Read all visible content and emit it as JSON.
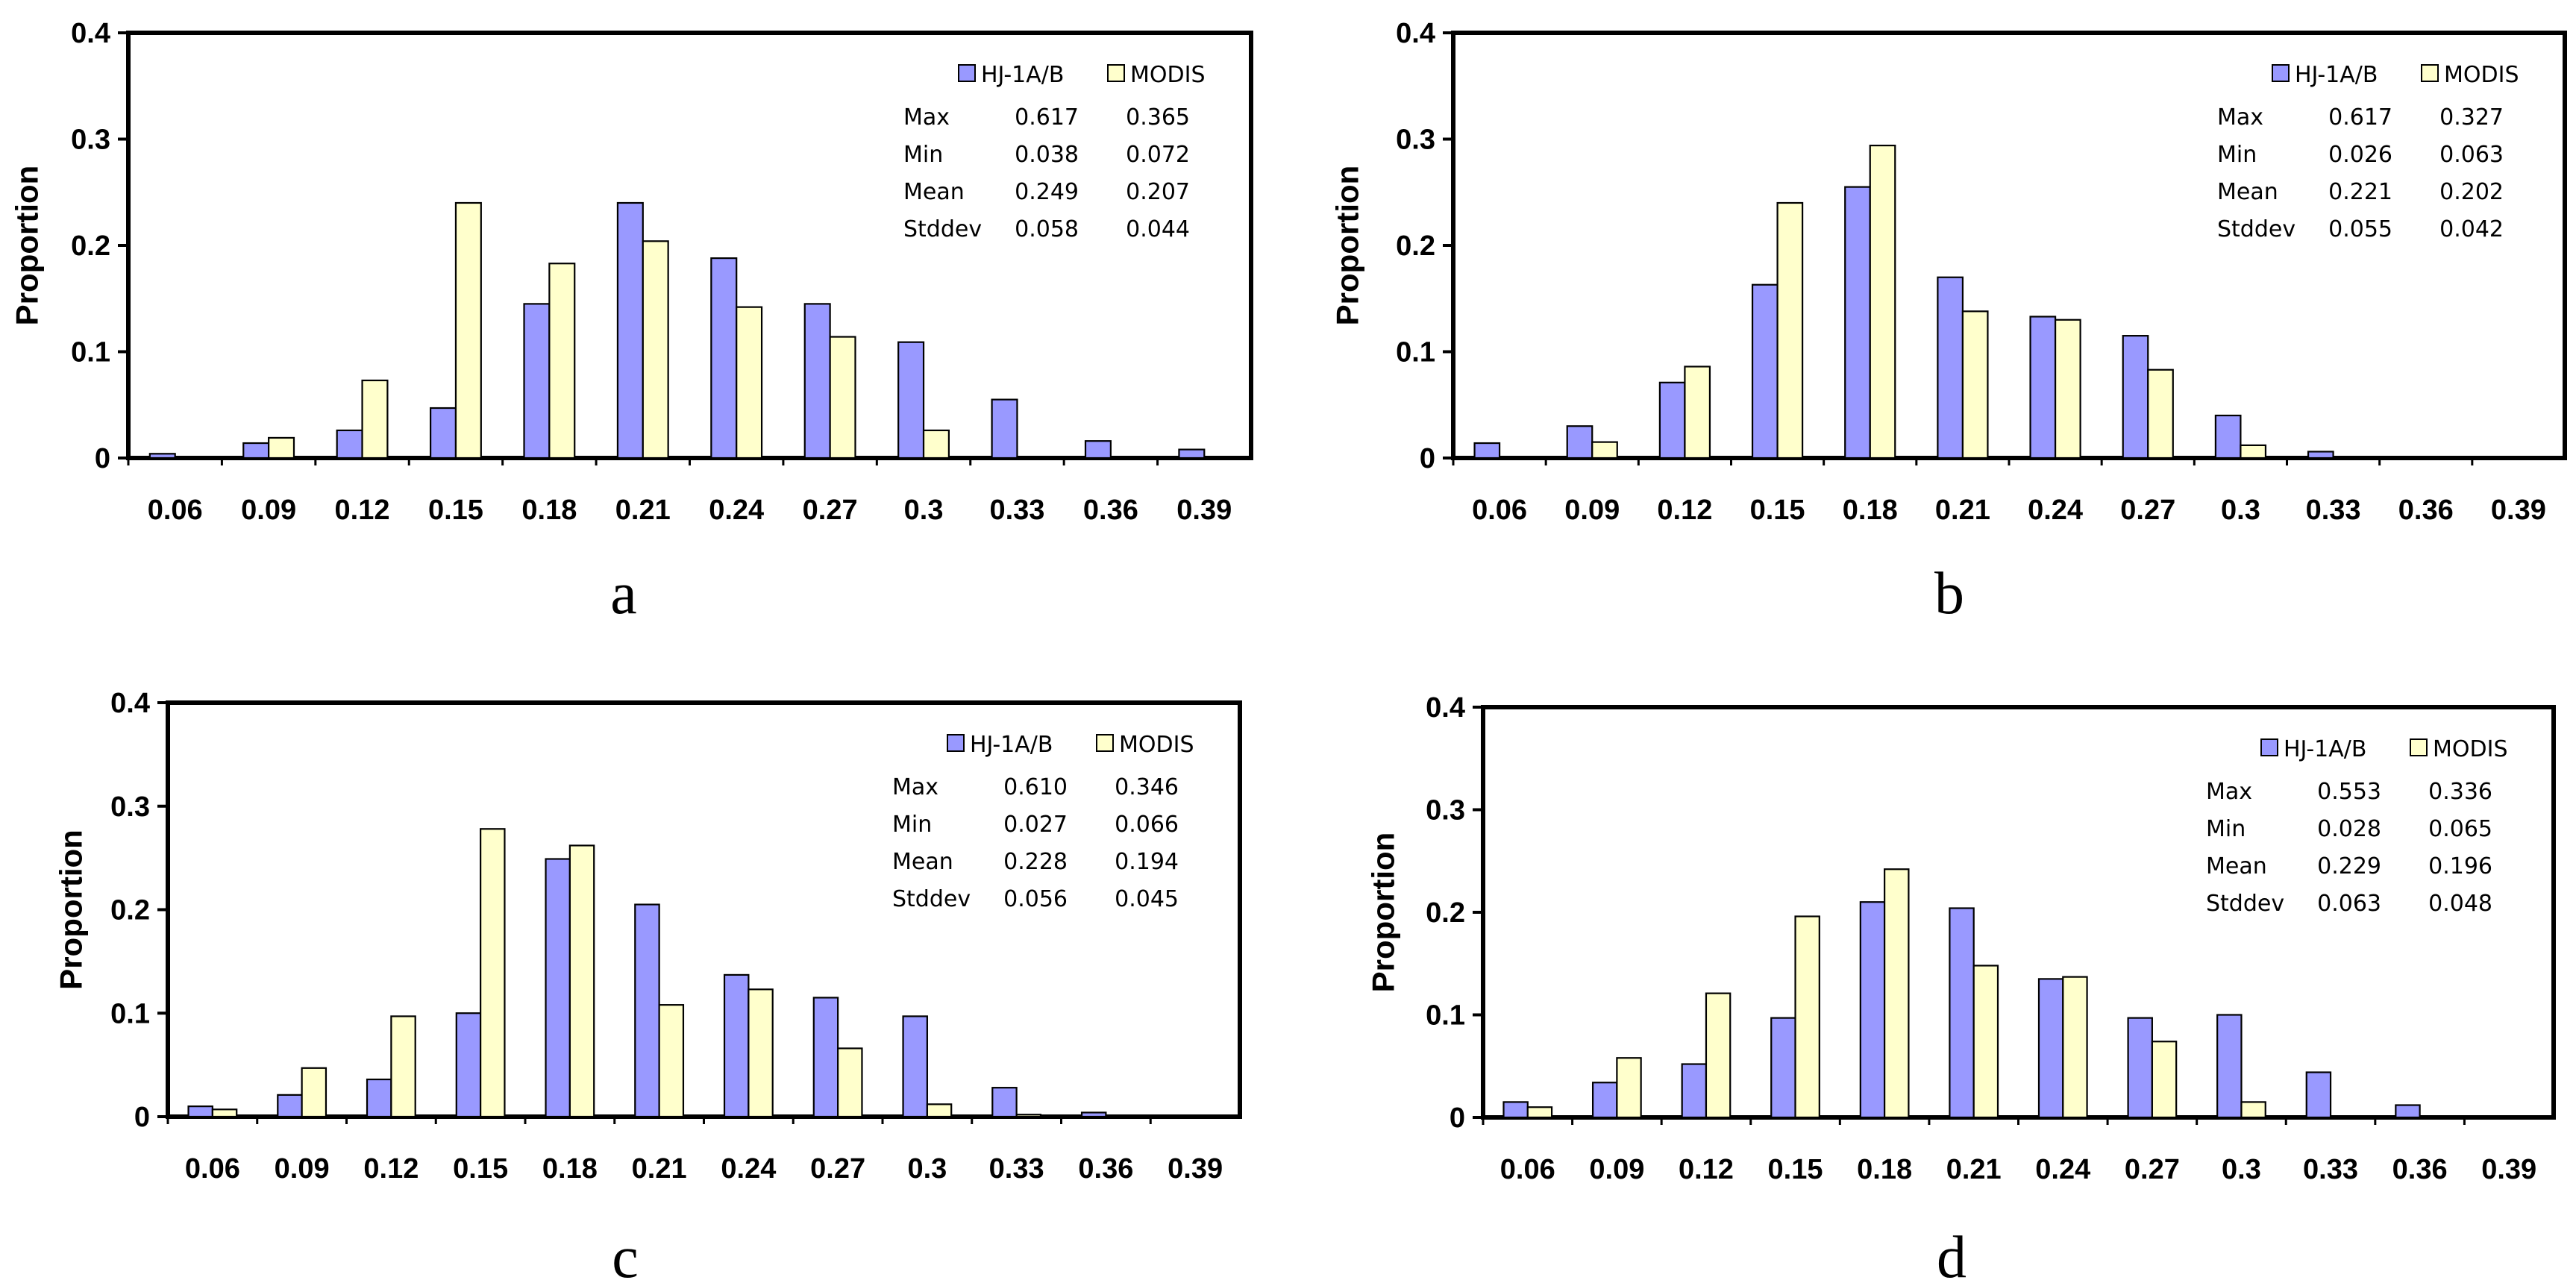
{
  "legend": {
    "series": [
      "HJ-1A/B",
      "MODIS"
    ]
  },
  "colors": {
    "HJ-1A/B": "#9999ff",
    "MODIS": "#ffffcc",
    "stroke": "#000000"
  },
  "chart_data": [
    {
      "type": "bar",
      "panel_label": "a",
      "ylabel": "Proportion",
      "ylim": [
        0,
        0.4
      ],
      "yticks": [
        "0",
        "0.1",
        "0.2",
        "0.3",
        "0.4"
      ],
      "categories": [
        "0.06",
        "0.09",
        "0.12",
        "0.15",
        "0.18",
        "0.21",
        "0.24",
        "0.27",
        "0.3",
        "0.33",
        "0.36",
        "0.39"
      ],
      "series": [
        {
          "name": "HJ-1A/B",
          "values": [
            0.004,
            0.014,
            0.026,
            0.047,
            0.145,
            0.24,
            0.188,
            0.145,
            0.109,
            0.055,
            0.016,
            0.008
          ]
        },
        {
          "name": "MODIS",
          "values": [
            0.001,
            0.019,
            0.073,
            0.24,
            0.183,
            0.204,
            0.142,
            0.114,
            0.026,
            0.001,
            0.0,
            0.0
          ]
        }
      ],
      "stats": [
        {
          "label": "Max",
          "hj": "0.617",
          "modis": "0.365"
        },
        {
          "label": "Min",
          "hj": "0.038",
          "modis": "0.072"
        },
        {
          "label": "Mean",
          "hj": "0.249",
          "modis": "0.207"
        },
        {
          "label": "Stddev",
          "hj": "0.058",
          "modis": "0.044"
        }
      ]
    },
    {
      "type": "bar",
      "panel_label": "b",
      "ylabel": "Proportion",
      "ylim": [
        0,
        0.4
      ],
      "yticks": [
        "0",
        "0.1",
        "0.2",
        "0.3",
        "0.4"
      ],
      "categories": [
        "0.06",
        "0.09",
        "0.12",
        "0.15",
        "0.18",
        "0.21",
        "0.24",
        "0.27",
        "0.3",
        "0.33",
        "0.36",
        "0.39"
      ],
      "series": [
        {
          "name": "HJ-1A/B",
          "values": [
            0.014,
            0.03,
            0.071,
            0.163,
            0.255,
            0.17,
            0.133,
            0.115,
            0.04,
            0.006,
            0.001,
            0.0
          ]
        },
        {
          "name": "MODIS",
          "values": [
            0.001,
            0.015,
            0.086,
            0.24,
            0.294,
            0.138,
            0.13,
            0.083,
            0.012,
            0.001,
            0.0,
            0.0
          ]
        }
      ],
      "stats": [
        {
          "label": "Max",
          "hj": "0.617",
          "modis": "0.327"
        },
        {
          "label": "Min",
          "hj": "0.026",
          "modis": "0.063"
        },
        {
          "label": "Mean",
          "hj": "0.221",
          "modis": "0.202"
        },
        {
          "label": "Stddev",
          "hj": "0.055",
          "modis": "0.042"
        }
      ]
    },
    {
      "type": "bar",
      "panel_label": "c",
      "ylabel": "Proportion",
      "ylim": [
        0,
        0.4
      ],
      "yticks": [
        "0",
        "0.1",
        "0.2",
        "0.3",
        "0.4"
      ],
      "categories": [
        "0.06",
        "0.09",
        "0.12",
        "0.15",
        "0.18",
        "0.21",
        "0.24",
        "0.27",
        "0.3",
        "0.33",
        "0.36",
        "0.39"
      ],
      "series": [
        {
          "name": "HJ-1A/B",
          "values": [
            0.01,
            0.021,
            0.036,
            0.1,
            0.249,
            0.205,
            0.137,
            0.115,
            0.097,
            0.028,
            0.004,
            0.001
          ]
        },
        {
          "name": "MODIS",
          "values": [
            0.007,
            0.047,
            0.097,
            0.278,
            0.262,
            0.108,
            0.123,
            0.066,
            0.012,
            0.002,
            0.0,
            0.0
          ]
        }
      ],
      "stats": [
        {
          "label": "Max",
          "hj": "0.610",
          "modis": "0.346"
        },
        {
          "label": "Min",
          "hj": "0.027",
          "modis": "0.066"
        },
        {
          "label": "Mean",
          "hj": "0.228",
          "modis": "0.194"
        },
        {
          "label": "Stddev",
          "hj": "0.056",
          "modis": "0.045"
        }
      ]
    },
    {
      "type": "bar",
      "panel_label": "d",
      "ylabel": "Proportion",
      "ylim": [
        0,
        0.4
      ],
      "yticks": [
        "0",
        "0.1",
        "0.2",
        "0.3",
        "0.4"
      ],
      "categories": [
        "0.06",
        "0.09",
        "0.12",
        "0.15",
        "0.18",
        "0.21",
        "0.24",
        "0.27",
        "0.3",
        "0.33",
        "0.36",
        "0.39"
      ],
      "series": [
        {
          "name": "HJ-1A/B",
          "values": [
            0.015,
            0.034,
            0.052,
            0.097,
            0.21,
            0.204,
            0.135,
            0.097,
            0.1,
            0.044,
            0.012,
            0.001
          ]
        },
        {
          "name": "MODIS",
          "values": [
            0.01,
            0.058,
            0.121,
            0.196,
            0.242,
            0.148,
            0.137,
            0.074,
            0.015,
            0.001,
            0.0,
            0.0
          ]
        }
      ],
      "stats": [
        {
          "label": "Max",
          "hj": "0.553",
          "modis": "0.336"
        },
        {
          "label": "Min",
          "hj": "0.028",
          "modis": "0.065"
        },
        {
          "label": "Mean",
          "hj": "0.229",
          "modis": "0.196"
        },
        {
          "label": "Stddev",
          "hj": "0.063",
          "modis": "0.048"
        }
      ]
    }
  ]
}
